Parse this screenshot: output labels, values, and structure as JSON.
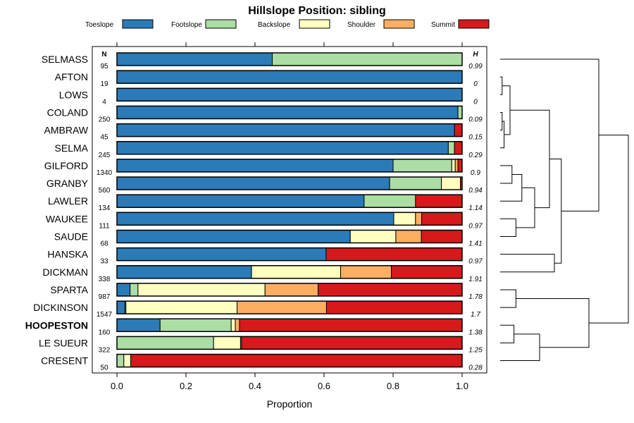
{
  "chart_data": {
    "type": "stacked-bar",
    "title": "Hillslope Position: sibling",
    "xlabel": "Proportion",
    "xlim": [
      0,
      1
    ],
    "xticks": [
      0.0,
      0.2,
      0.4,
      0.6,
      0.8,
      1.0
    ],
    "xtick_labels": [
      "0.0",
      "0.2",
      "0.4",
      "0.6",
      "0.8",
      "1.0"
    ],
    "n_header": "N",
    "h_header": "H",
    "legend": [
      {
        "name": "Toeslope",
        "color": "#2b7bb9"
      },
      {
        "name": "Footslope",
        "color": "#abdda4"
      },
      {
        "name": "Backslope",
        "color": "#ffffbf"
      },
      {
        "name": "Shoulder",
        "color": "#fdae61"
      },
      {
        "name": "Summit",
        "color": "#d7191c"
      }
    ],
    "series_names": [
      "Toeslope",
      "Footslope",
      "Backslope",
      "Shoulder",
      "Summit"
    ],
    "rows": [
      {
        "label": "SELMASS",
        "n": "95",
        "h": "0.99",
        "bold": false,
        "values": [
          0.45,
          0.55,
          0,
          0,
          0
        ]
      },
      {
        "label": "AFTON",
        "n": "19",
        "h": "0",
        "bold": false,
        "values": [
          1.0,
          0,
          0,
          0,
          0
        ]
      },
      {
        "label": "LOWS",
        "n": "4",
        "h": "0",
        "bold": false,
        "values": [
          1.0,
          0,
          0,
          0,
          0
        ]
      },
      {
        "label": "COLAND",
        "n": "250",
        "h": "0.09",
        "bold": false,
        "values": [
          0.988,
          0.012,
          0,
          0,
          0
        ]
      },
      {
        "label": "AMBRAW",
        "n": "45",
        "h": "0.15",
        "bold": false,
        "values": [
          0.978,
          0,
          0,
          0,
          0.022
        ]
      },
      {
        "label": "SELMA",
        "n": "245",
        "h": "0.29",
        "bold": false,
        "values": [
          0.96,
          0.018,
          0,
          0,
          0.022
        ]
      },
      {
        "label": "GILFORD",
        "n": "1340",
        "h": "0.9",
        "bold": false,
        "values": [
          0.8,
          0.17,
          0.01,
          0.008,
          0.012
        ]
      },
      {
        "label": "GRANBY",
        "n": "560",
        "h": "0.94",
        "bold": false,
        "values": [
          0.79,
          0.15,
          0.055,
          0,
          0.005
        ]
      },
      {
        "label": "LAWLER",
        "n": "134",
        "h": "1.14",
        "bold": false,
        "values": [
          0.716,
          0.149,
          0,
          0,
          0.135
        ]
      },
      {
        "label": "WAUKEE",
        "n": "111",
        "h": "0.97",
        "bold": false,
        "values": [
          0.802,
          0,
          0.063,
          0.018,
          0.117
        ]
      },
      {
        "label": "SAUDE",
        "n": "68",
        "h": "1.41",
        "bold": false,
        "values": [
          0.676,
          0,
          0.132,
          0.074,
          0.118
        ]
      },
      {
        "label": "HANSKA",
        "n": "33",
        "h": "0.97",
        "bold": false,
        "values": [
          0.606,
          0,
          0,
          0,
          0.394
        ]
      },
      {
        "label": "DICKMAN",
        "n": "338",
        "h": "1.91",
        "bold": false,
        "values": [
          0.39,
          0,
          0.258,
          0.147,
          0.205
        ]
      },
      {
        "label": "SPARTA",
        "n": "987",
        "h": "1.78",
        "bold": false,
        "values": [
          0.038,
          0.023,
          0.368,
          0.154,
          0.417
        ]
      },
      {
        "label": "DICKINSON",
        "n": "1547",
        "h": "1.7",
        "bold": false,
        "values": [
          0.023,
          0.003,
          0.322,
          0.259,
          0.393
        ]
      },
      {
        "label": "HOOPESTON",
        "n": "160",
        "h": "1.38",
        "bold": true,
        "values": [
          0.125,
          0.206,
          0.012,
          0.012,
          0.645
        ]
      },
      {
        "label": "LE SUEUR",
        "n": "322",
        "h": "1.25",
        "bold": false,
        "values": [
          0,
          0.28,
          0.078,
          0.003,
          0.639
        ]
      },
      {
        "label": "CRESENT",
        "n": "50",
        "h": "0.28",
        "bold": false,
        "values": [
          0,
          0.02,
          0.02,
          0,
          0.96
        ]
      }
    ],
    "dendrogram_leaf_order": [
      "SELMASS",
      "AFTON",
      "LOWS",
      "COLAND",
      "AMBRAW",
      "SELMA",
      "GILFORD",
      "GRANBY",
      "LAWLER",
      "WAUKEE",
      "SAUDE",
      "HANSKA",
      "DICKMAN",
      "SPARTA",
      "DICKINSON",
      "HOOPESTON",
      "LE SUEUR",
      "CRESENT"
    ],
    "dendrogram_merges": [
      [
        "COLAND",
        "AMBRAW",
        0.02
      ],
      [
        "c1",
        "SELMA",
        0.04
      ],
      [
        "AFTON",
        "LOWS",
        0.02
      ],
      [
        "c3",
        "c2",
        0.1
      ],
      [
        "GILFORD",
        "GRANBY",
        0.12
      ],
      [
        "c5",
        "LAWLER",
        0.22
      ],
      [
        "WAUKEE",
        "SAUDE",
        0.16
      ],
      [
        "c6",
        "c7",
        0.35
      ],
      [
        "c4",
        "c8",
        0.5
      ],
      [
        "HANSKA",
        "DICKMAN",
        0.55
      ],
      [
        "c9",
        "c10",
        0.62
      ],
      [
        "SELMASS",
        "c11",
        1.0
      ],
      [
        "SPARTA",
        "DICKINSON",
        0.16
      ],
      [
        "HOOPESTON",
        "LE SUEUR",
        0.14
      ],
      [
        "c14",
        "CRESENT",
        0.4
      ],
      [
        "c13",
        "c15",
        0.9
      ],
      [
        "c12",
        "c16",
        1.3
      ]
    ]
  }
}
